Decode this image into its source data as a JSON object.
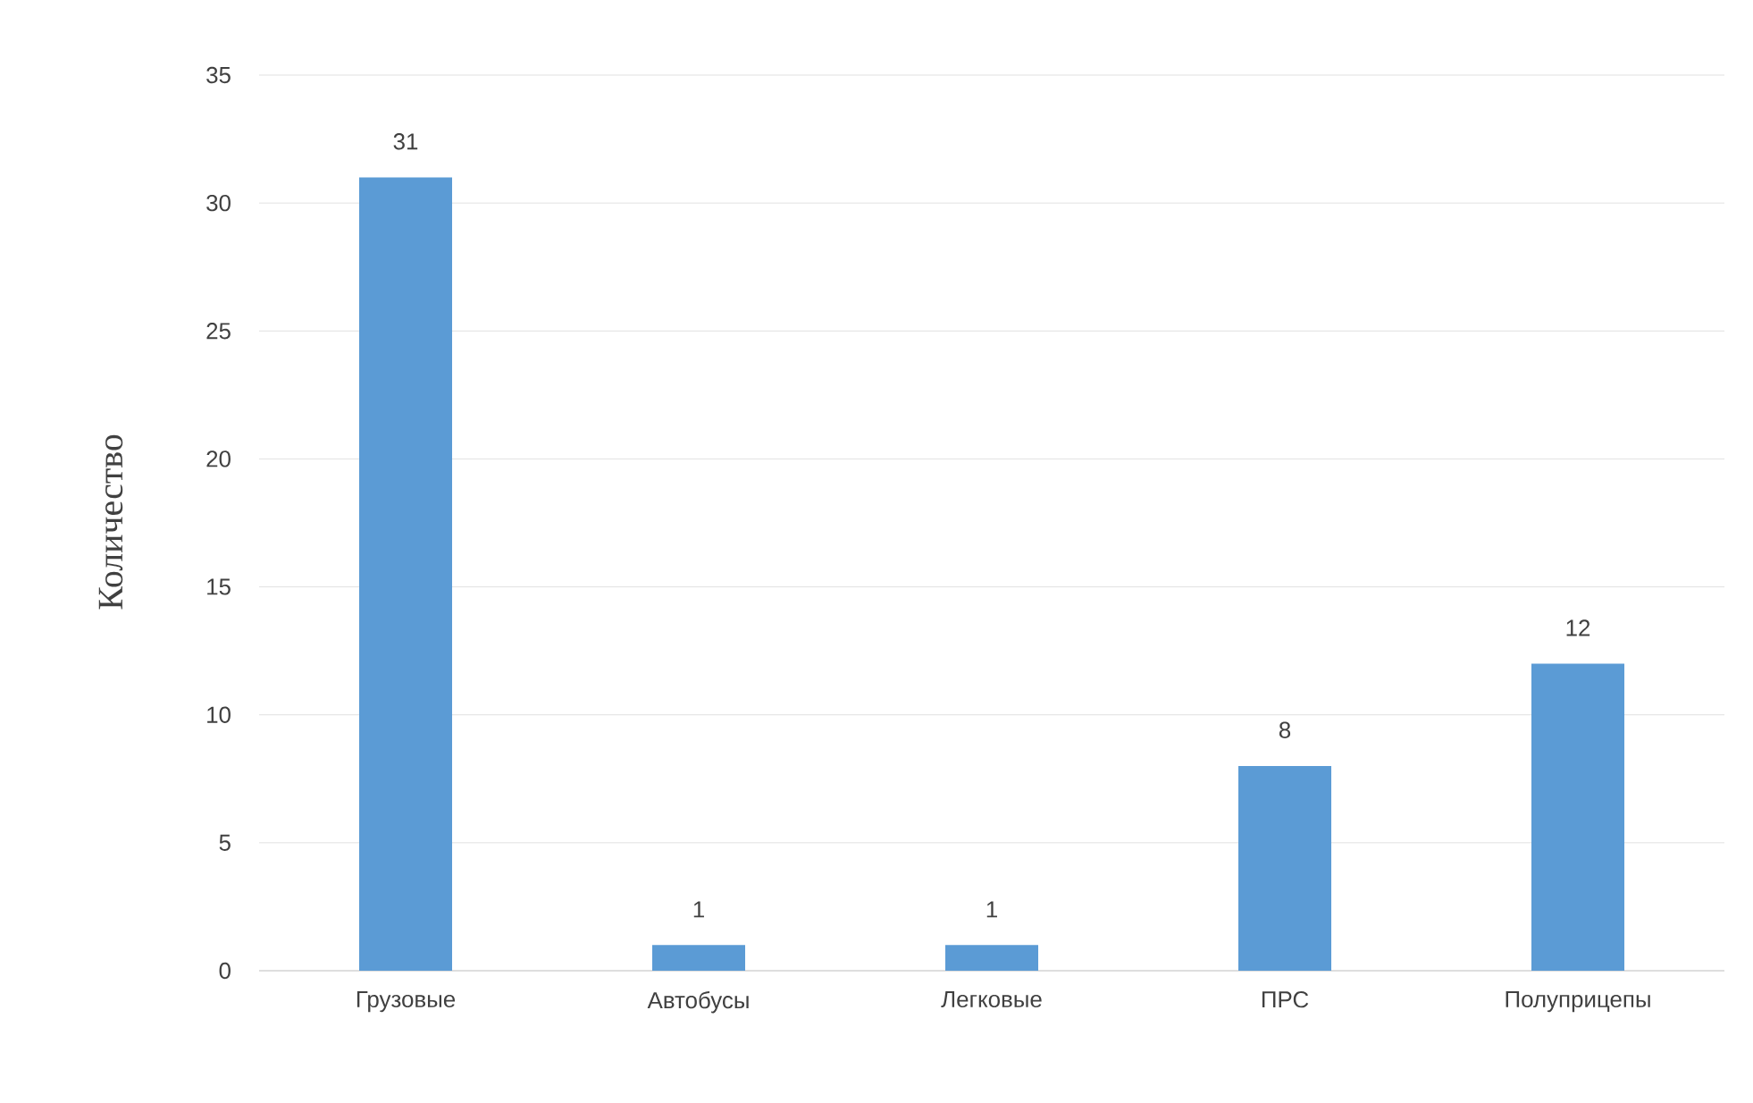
{
  "chart_data": {
    "type": "bar",
    "ylabel": "Количество",
    "categories": [
      "Грузовые",
      "Автобусы",
      "Легковые",
      "ПРС",
      "Полуприцепы"
    ],
    "values": [
      31,
      1,
      1,
      8,
      12
    ],
    "color": "#5b9bd5",
    "ylim": [
      0,
      35
    ],
    "yticks": [
      0,
      5,
      10,
      15,
      20,
      25,
      30,
      35
    ],
    "grid": "y",
    "data_labels": true
  }
}
